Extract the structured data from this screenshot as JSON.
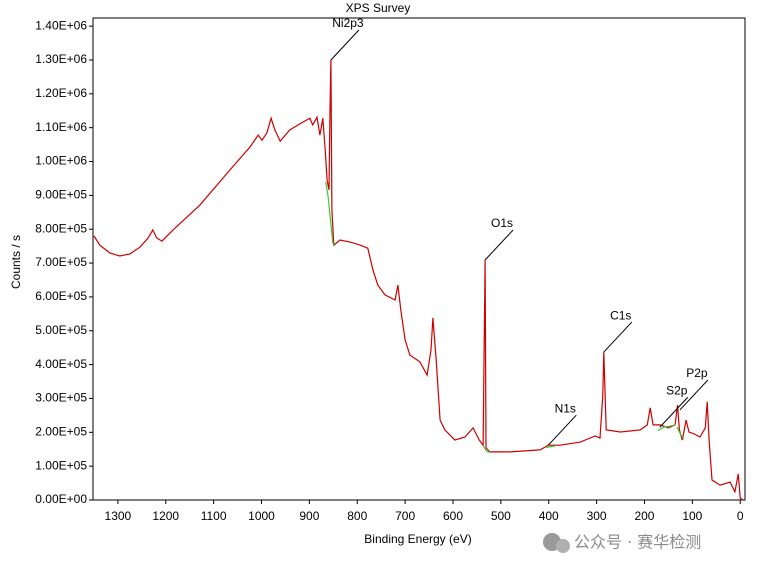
{
  "chart_data": {
    "type": "line",
    "title": "XPS Survey",
    "x_label": "Binding Energy (eV)",
    "y_label": "Counts / s",
    "color": "#cc0000",
    "baseline_color": "#33cc33",
    "xlim": [
      1352,
      -10
    ],
    "ylim": [
      0,
      1424000
    ],
    "xticks": [
      1300,
      1200,
      1100,
      1000,
      900,
      800,
      700,
      600,
      500,
      400,
      300,
      200,
      100,
      0
    ],
    "yticks": [
      {
        "value": 0,
        "label": "0.00E+00"
      },
      {
        "value": 100000,
        "label": "1.00E+05"
      },
      {
        "value": 200000,
        "label": "2.00E+05"
      },
      {
        "value": 300000,
        "label": "3.00E+05"
      },
      {
        "value": 400000,
        "label": "4.00E+05"
      },
      {
        "value": 500000,
        "label": "5.00E+05"
      },
      {
        "value": 600000,
        "label": "6.00E+05"
      },
      {
        "value": 700000,
        "label": "7.00E+05"
      },
      {
        "value": 800000,
        "label": "8.00E+05"
      },
      {
        "value": 900000,
        "label": "9.00E+05"
      },
      {
        "value": 1000000,
        "label": "1.00E+06"
      },
      {
        "value": 1100000,
        "label": "1.10E+06"
      },
      {
        "value": 1200000,
        "label": "1.20E+06"
      },
      {
        "value": 1300000,
        "label": "1.30E+06"
      },
      {
        "value": 1400000,
        "label": "1.40E+06"
      }
    ],
    "x": [
      1350,
      1338,
      1317,
      1296,
      1275,
      1254,
      1237,
      1227,
      1219,
      1208,
      1181,
      1129,
      1066,
      1024,
      1007,
      999,
      989,
      980,
      972,
      961,
      941,
      920,
      899,
      893,
      884,
      878,
      872,
      867,
      863,
      859,
      857,
      855,
      853,
      849,
      836,
      815,
      794,
      778,
      767,
      757,
      742,
      721,
      715,
      709,
      700,
      690,
      669,
      654,
      646,
      642,
      635,
      627,
      617,
      596,
      575,
      558,
      545,
      537,
      533,
      531,
      523,
      481,
      418,
      401,
      376,
      334,
      303,
      293,
      287,
      285,
      280,
      251,
      209,
      194,
      188,
      182,
      167,
      150,
      136,
      131,
      127,
      121,
      113,
      107,
      96,
      84,
      73,
      69,
      65,
      59,
      42,
      21,
      11,
      4,
      0,
      -6
    ],
    "values": [
      780000,
      753000,
      730000,
      721000,
      727000,
      747000,
      774000,
      798000,
      774000,
      765000,
      803000,
      871000,
      975000,
      1043000,
      1078000,
      1063000,
      1084000,
      1128000,
      1093000,
      1060000,
      1093000,
      1111000,
      1128000,
      1108000,
      1131000,
      1078000,
      1128000,
      1034000,
      945000,
      916000,
      1152000,
      1300000,
      857000,
      753000,
      768000,
      762000,
      753000,
      744000,
      679000,
      635000,
      606000,
      591000,
      635000,
      561000,
      473000,
      428000,
      408000,
      369000,
      443000,
      538000,
      414000,
      236000,
      207000,
      177000,
      186000,
      213000,
      177000,
      162000,
      709000,
      154000,
      142000,
      142000,
      148000,
      162000,
      162000,
      171000,
      189000,
      183000,
      310000,
      437000,
      207000,
      201000,
      207000,
      222000,
      272000,
      222000,
      222000,
      213000,
      222000,
      281000,
      207000,
      177000,
      236000,
      201000,
      195000,
      186000,
      213000,
      290000,
      177000,
      59000,
      44000,
      53000,
      24000,
      77000,
      6000,
      0
    ],
    "baselines": [
      {
        "x": [
          866,
          861,
          856,
          851,
          848
        ],
        "values": [
          940000,
          900000,
          830000,
          760000,
          750000
        ]
      },
      {
        "x": [
          537,
          530,
          522
        ],
        "values": [
          160000,
          145000,
          140000
        ]
      },
      {
        "x": [
          405,
          395,
          385
        ],
        "values": [
          155000,
          158000,
          160000
        ]
      },
      {
        "x": [
          172,
          160,
          148,
          135
        ],
        "values": [
          205000,
          215000,
          218000,
          222000
        ]
      },
      {
        "x": [
          132,
          125,
          118
        ],
        "values": [
          215000,
          195000,
          180000
        ]
      }
    ],
    "annotations": [
      {
        "text": "Ni2p3",
        "x": 855,
        "y": 1300000
      },
      {
        "text": "O1s",
        "x": 533,
        "y": 709000
      },
      {
        "text": "C1s",
        "x": 285,
        "y": 437000
      },
      {
        "text": "N1s",
        "x": 401,
        "y": 162000
      },
      {
        "text": "S2p",
        "x": 168,
        "y": 215000
      },
      {
        "text": "P2p",
        "x": 126,
        "y": 266000
      }
    ],
    "watermark": "公众号 · 赛华检测"
  }
}
